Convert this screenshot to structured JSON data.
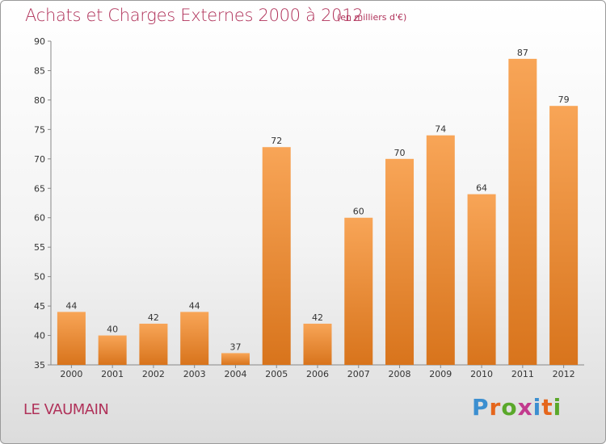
{
  "title": "Achats et Charges Externes 2000 à 2012",
  "subtitle": "(en milliers d'€)",
  "commune": "LE VAUMAIN",
  "logo": {
    "letters": [
      "P",
      "r",
      "o",
      "x",
      "i",
      "t",
      "i"
    ],
    "colors": [
      "#3c8fd0",
      "#e5661c",
      "#5aa82a",
      "#c23a8e",
      "#3c8fd0",
      "#e5661c",
      "#5aa82a"
    ]
  },
  "colors": {
    "bar_light": "#f8a557",
    "bar_dark": "#d8741c",
    "title": "#b0325a"
  },
  "chart_data": {
    "type": "bar",
    "categories": [
      "2000",
      "2001",
      "2002",
      "2003",
      "2004",
      "2005",
      "2006",
      "2007",
      "2008",
      "2009",
      "2010",
      "2011",
      "2012"
    ],
    "values": [
      44,
      40,
      42,
      44,
      37,
      72,
      42,
      60,
      70,
      74,
      64,
      87,
      79
    ],
    "ylim": [
      35,
      90
    ],
    "yticks": [
      35,
      40,
      45,
      50,
      55,
      60,
      65,
      70,
      75,
      80,
      85,
      90
    ],
    "grid": false,
    "xlabel": "",
    "ylabel": ""
  }
}
